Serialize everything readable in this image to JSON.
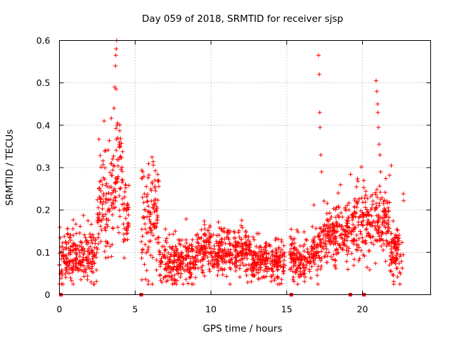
{
  "chart_data": {
    "type": "scatter",
    "title": "Day 059 of 2018, SRMTID for receiver sjsp",
    "xlabel": "GPS time / hours",
    "ylabel": "SRMTID / TECUs",
    "xlim": [
      0,
      24.5
    ],
    "ylim": [
      0,
      0.6
    ],
    "grid": true,
    "marker": "+",
    "x_ticks": [
      0,
      5,
      10,
      15,
      20
    ],
    "y_ticks": [
      0,
      0.1,
      0.2,
      0.3,
      0.4,
      0.5,
      0.6
    ],
    "x_tick_labels": [
      "0",
      "5",
      "10",
      "15",
      "20"
    ],
    "y_tick_labels": [
      "0",
      "0.1",
      "0.2",
      "0.3",
      "0.4",
      "0.5",
      "0.6"
    ],
    "series": [
      {
        "name": "SRMTID",
        "color": "#ff0000",
        "segments": [
          {
            "start": 0.0,
            "end": 2.5,
            "base": 0.09,
            "spread": 0.04
          },
          {
            "start": 2.5,
            "end": 3.4,
            "base": 0.2,
            "spread": 0.08
          },
          {
            "start": 3.4,
            "end": 4.2,
            "base": 0.26,
            "spread": 0.09
          },
          {
            "start": 4.2,
            "end": 4.6,
            "base": 0.18,
            "spread": 0.06
          },
          {
            "start": 5.4,
            "end": 6.6,
            "base": 0.18,
            "spread": 0.08
          },
          {
            "start": 6.6,
            "end": 9.0,
            "base": 0.08,
            "spread": 0.035
          },
          {
            "start": 9.0,
            "end": 12.6,
            "base": 0.1,
            "spread": 0.035
          },
          {
            "start": 12.6,
            "end": 14.9,
            "base": 0.075,
            "spread": 0.03
          },
          {
            "start": 15.2,
            "end": 16.6,
            "base": 0.08,
            "spread": 0.035
          },
          {
            "start": 16.6,
            "end": 17.4,
            "base": 0.11,
            "spread": 0.04
          },
          {
            "start": 17.4,
            "end": 18.8,
            "base": 0.14,
            "spread": 0.05
          },
          {
            "start": 18.8,
            "end": 19.4,
            "base": 0.15,
            "spread": 0.05
          },
          {
            "start": 19.4,
            "end": 20.5,
            "base": 0.16,
            "spread": 0.06
          },
          {
            "start": 20.5,
            "end": 21.8,
            "base": 0.17,
            "spread": 0.05
          },
          {
            "start": 21.8,
            "end": 22.7,
            "base": 0.1,
            "spread": 0.04
          }
        ],
        "spikes": [
          {
            "x": 2.95,
            "y": 0.41
          },
          {
            "x": 3.05,
            "y": 0.34
          },
          {
            "x": 3.6,
            "y": 0.44
          },
          {
            "x": 3.65,
            "y": 0.49
          },
          {
            "x": 3.7,
            "y": 0.54
          },
          {
            "x": 3.72,
            "y": 0.565
          },
          {
            "x": 3.75,
            "y": 0.58
          },
          {
            "x": 3.78,
            "y": 0.6
          },
          {
            "x": 3.8,
            "y": 0.4
          },
          {
            "x": 3.85,
            "y": 0.37
          },
          {
            "x": 5.5,
            "y": 0.29
          },
          {
            "x": 6.3,
            "y": 0.27
          },
          {
            "x": 17.1,
            "y": 0.565
          },
          {
            "x": 17.15,
            "y": 0.52
          },
          {
            "x": 17.18,
            "y": 0.43
          },
          {
            "x": 17.2,
            "y": 0.395
          },
          {
            "x": 17.25,
            "y": 0.33
          },
          {
            "x": 17.3,
            "y": 0.29
          },
          {
            "x": 18.4,
            "y": 0.24
          },
          {
            "x": 20.9,
            "y": 0.505
          },
          {
            "x": 20.95,
            "y": 0.48
          },
          {
            "x": 21.0,
            "y": 0.45
          },
          {
            "x": 21.02,
            "y": 0.43
          },
          {
            "x": 21.05,
            "y": 0.395
          },
          {
            "x": 21.1,
            "y": 0.355
          },
          {
            "x": 21.15,
            "y": 0.33
          },
          {
            "x": 21.2,
            "y": 0.29
          },
          {
            "x": 21.9,
            "y": 0.305
          },
          {
            "x": 22.7,
            "y": 0.238
          },
          {
            "x": 22.72,
            "y": 0.222
          }
        ]
      }
    ],
    "zero_markers": [
      0.1,
      5.4,
      15.3,
      19.2,
      20.1
    ]
  }
}
